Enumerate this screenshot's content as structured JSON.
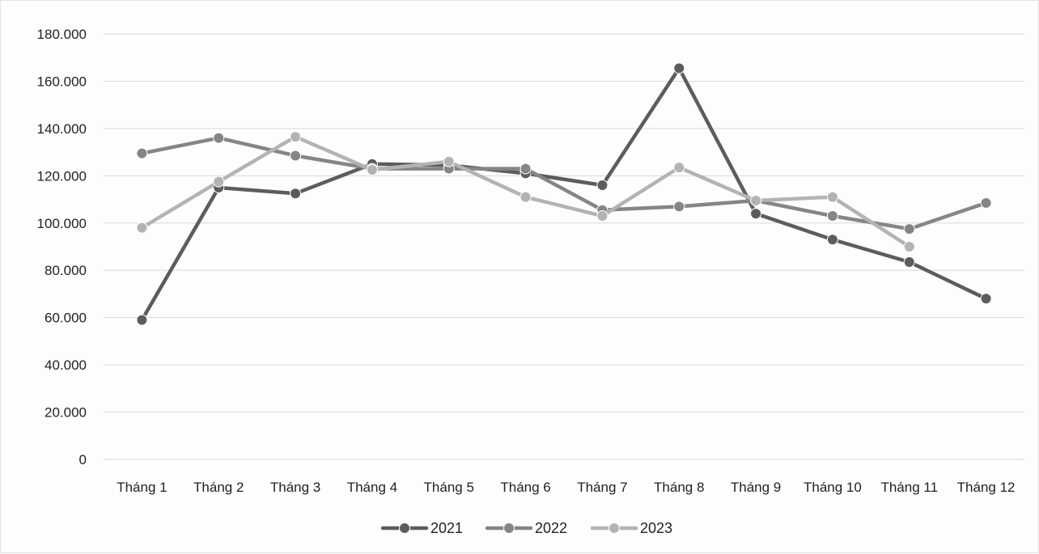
{
  "chart_data": {
    "type": "line",
    "title": "",
    "xlabel": "",
    "ylabel": "",
    "categories": [
      "Tháng 1",
      "Tháng 2",
      "Tháng 3",
      "Tháng 4",
      "Tháng 5",
      "Tháng 6",
      "Tháng 7",
      "Tháng 8",
      "Tháng 9",
      "Tháng 10",
      "Tháng 11",
      "Tháng 12"
    ],
    "ylim": [
      0,
      180000
    ],
    "yticks": [
      0,
      20000,
      40000,
      60000,
      80000,
      100000,
      120000,
      140000,
      160000,
      180000
    ],
    "ytick_labels": [
      "0",
      "20.000",
      "40.000",
      "60.000",
      "80.000",
      "100.000",
      "120.000",
      "140.000",
      "160.000",
      "180.000"
    ],
    "grid": true,
    "legend_position": "bottom",
    "series": [
      {
        "name": "2021",
        "color": "#5c5c5c",
        "values": [
          59000,
          115000,
          112500,
          125000,
          124500,
          121000,
          116000,
          165500,
          104000,
          93000,
          83500,
          68000
        ]
      },
      {
        "name": "2022",
        "color": "#858585",
        "values": [
          129500,
          136000,
          128500,
          123000,
          123000,
          123000,
          105500,
          107000,
          109500,
          103000,
          97500,
          108500
        ]
      },
      {
        "name": "2023",
        "color": "#b3b3b3",
        "values": [
          98000,
          117500,
          136500,
          122500,
          126000,
          111000,
          103000,
          123500,
          109500,
          111000,
          90000,
          null
        ]
      }
    ]
  }
}
